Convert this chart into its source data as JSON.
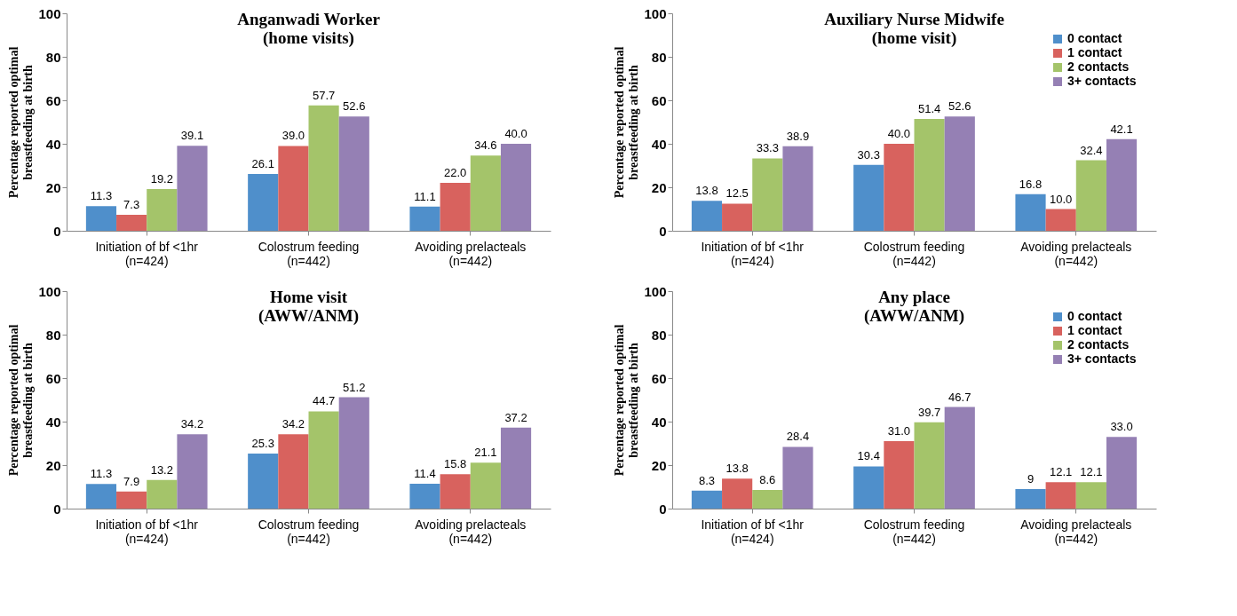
{
  "chart_data": [
    {
      "type": "bar",
      "title": "Anganwadi Worker\n(home visits)",
      "ylabel": "Percentage reported optimal\nbreastfeeding at birth",
      "categories": [
        "Initiation of bf <1hr\n(n=424)",
        "Colostrum  feeding\n(n=442)",
        "Avoiding prelacteals\n(n=442)"
      ],
      "series": [
        {
          "color": "#4f8fcb",
          "values": [
            11.3,
            26.1,
            11.1
          ],
          "value_labels": [
            "11.3",
            "26.1",
            "11.1"
          ]
        },
        {
          "color": "#d8625e",
          "values": [
            7.3,
            39.0,
            22.0
          ],
          "value_labels": [
            "7.3",
            "39.0",
            "22.0"
          ]
        },
        {
          "color": "#a4c46a",
          "values": [
            19.2,
            57.7,
            34.6
          ],
          "value_labels": [
            "19.2",
            "57.7",
            "34.6"
          ]
        },
        {
          "color": "#9580b4",
          "values": [
            39.1,
            52.6,
            40.0
          ],
          "value_labels": [
            "39.1",
            "52.6",
            "40.0"
          ]
        }
      ],
      "ylim": [
        0,
        100
      ],
      "yticks": [
        0,
        20,
        40,
        60,
        80,
        100
      ],
      "grid": false,
      "legend": false
    },
    {
      "type": "bar",
      "title": "Auxiliary Nurse Midwife\n(home visit)",
      "ylabel": "Percentage reported optimal\nbreastfeeding at birth",
      "categories": [
        "Initiation of bf <1hr\n(n=424)",
        "Colostrum  feeding\n(n=442)",
        "Avoiding prelacteals\n(n=442)"
      ],
      "series": [
        {
          "name": "0 contact",
          "color": "#4f8fcb",
          "values": [
            13.8,
            30.3,
            16.8
          ],
          "value_labels": [
            "13.8",
            "30.3",
            "16.8"
          ]
        },
        {
          "name": "1 contact",
          "color": "#d8625e",
          "values": [
            12.5,
            40.0,
            10.0
          ],
          "value_labels": [
            "12.5",
            "40.0",
            "10.0"
          ]
        },
        {
          "name": "2 contacts",
          "color": "#a4c46a",
          "values": [
            33.3,
            51.4,
            32.4
          ],
          "value_labels": [
            "33.3",
            "51.4",
            "32.4"
          ]
        },
        {
          "name": "3+ contacts",
          "color": "#9580b4",
          "values": [
            38.9,
            52.6,
            42.1
          ],
          "value_labels": [
            "38.9",
            "52.6",
            "42.1"
          ]
        }
      ],
      "ylim": [
        0,
        100
      ],
      "yticks": [
        0,
        20,
        40,
        60,
        80,
        100
      ],
      "grid": false,
      "legend": "top right"
    },
    {
      "type": "bar",
      "title": "Home visit\n(AWW/ANM)",
      "ylabel": "Percentage reported optimal\nbreastfeeding at birth",
      "categories": [
        "Initiation of bf <1hr\n(n=424)",
        "Colostrum  feeding\n(n=442)",
        "Avoiding prelacteals\n(n=442)"
      ],
      "series": [
        {
          "color": "#4f8fcb",
          "values": [
            11.3,
            25.3,
            11.4
          ],
          "value_labels": [
            "11.3",
            "25.3",
            "11.4"
          ]
        },
        {
          "color": "#d8625e",
          "values": [
            7.9,
            34.2,
            15.8
          ],
          "value_labels": [
            "7.9",
            "34.2",
            "15.8"
          ]
        },
        {
          "color": "#a4c46a",
          "values": [
            13.2,
            44.7,
            21.1
          ],
          "value_labels": [
            "13.2",
            "44.7",
            "21.1"
          ]
        },
        {
          "color": "#9580b4",
          "values": [
            34.2,
            51.2,
            37.2
          ],
          "value_labels": [
            "34.2",
            "51.2",
            "37.2"
          ]
        }
      ],
      "ylim": [
        0,
        100
      ],
      "yticks": [
        0,
        20,
        40,
        60,
        80,
        100
      ],
      "grid": false,
      "legend": false
    },
    {
      "type": "bar",
      "title": "Any place\n(AWW/ANM)",
      "ylabel": "Percentage reported optimal\nbreastfeeding at birth",
      "categories": [
        "Initiation of bf <1hr\n(n=424)",
        "Colostrum  feeding\n(n=442)",
        "Avoiding prelacteals\n(n=442)"
      ],
      "series": [
        {
          "name": "0 contact",
          "color": "#4f8fcb",
          "values": [
            8.3,
            19.4,
            9
          ],
          "value_labels": [
            "8.3",
            "19.4",
            "9"
          ]
        },
        {
          "name": "1 contact",
          "color": "#d8625e",
          "values": [
            13.8,
            31.0,
            12.1
          ],
          "value_labels": [
            "13.8",
            "31.0",
            "12.1"
          ]
        },
        {
          "name": "2 contacts",
          "color": "#a4c46a",
          "values": [
            8.6,
            39.7,
            12.1
          ],
          "value_labels": [
            "8.6",
            "39.7",
            "12.1"
          ]
        },
        {
          "name": "3+ contacts",
          "color": "#9580b4",
          "values": [
            28.4,
            46.7,
            33.0
          ],
          "value_labels": [
            "28.4",
            "46.7",
            "33.0"
          ]
        }
      ],
      "ylim": [
        0,
        100
      ],
      "yticks": [
        0,
        20,
        40,
        60,
        80,
        100
      ],
      "grid": false,
      "legend": "top right"
    }
  ]
}
